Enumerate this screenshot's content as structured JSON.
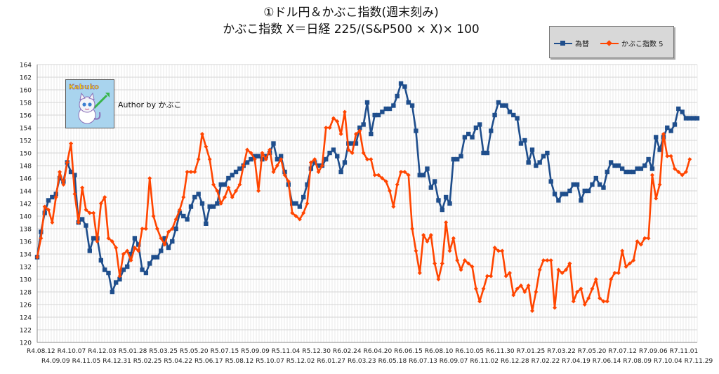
{
  "header": {
    "title_line1": "①ドル円＆かぶこ指数(週末刻み)",
    "title_line2": "かぶこ指数 X＝日経 225/(S&P500 × X)× 100"
  },
  "logo": {
    "text": "Kabuko",
    "author": "Author by かぶこ"
  },
  "colors": {
    "fx": "#1f4e8c",
    "kabuko": "#ff4500",
    "grid": "#c8c8c8",
    "plot_bg": "#ffffff"
  },
  "chart_data": {
    "type": "line",
    "title": "①ドル円＆かぶこ指数(週末刻み)",
    "subtitle": "かぶこ指数 X＝日経 225/(S&P500 × X)× 100",
    "xlabel": "",
    "ylabel": "",
    "ylim": [
      120,
      164
    ],
    "ytick_step": 2,
    "grid": true,
    "legend_position": "top-right",
    "x_tick_labels_row1": [
      "R4.08.12",
      "R4.10.07",
      "R4.12.03",
      "R5.01.28",
      "R5.03.25",
      "R5.05.20",
      "R5.07.15",
      "R5.09.09",
      "R5.11.04",
      "R5.12.30",
      "R6.02.24",
      "R6.04.20",
      "R6.06.15",
      "R6.08.10",
      "R6.10.05",
      "R6.11.30",
      "R7.01.25",
      "R7.03.22",
      "R7.05.20",
      "R7.07.12",
      "R7.09.06",
      "R7.11.01"
    ],
    "x_tick_labels_row2": [
      "R4.09.09",
      "R4.11.05",
      "R4.12.31",
      "R5.02.25",
      "R5.04.22",
      "R5.06.17",
      "R5.08.12",
      "R5.10.07",
      "R5.12.02",
      "R6.01.27",
      "R6.03.23",
      "R6.05.18",
      "R6.07.13",
      "R6.09.07",
      "R6.11.02",
      "R6.12.28",
      "R7.02.22",
      "R7.04.19",
      "R7.06.14",
      "R7.08.09",
      "R7.10.04",
      "R7.11.29"
    ],
    "series": [
      {
        "name": "為替",
        "marker": "square",
        "values": [
          133.5,
          137.5,
          140.5,
          142.5,
          143,
          143.5,
          146,
          145.5,
          148.5,
          147,
          146.5,
          139,
          139.5,
          138.5,
          134.5,
          136.5,
          136.5,
          133,
          131.5,
          131,
          128,
          129.5,
          130,
          131.5,
          132,
          134,
          136.5,
          135.5,
          131.5,
          131,
          132.5,
          133.5,
          133.5,
          134.5,
          136.5,
          135,
          136,
          138,
          140.5,
          140,
          139.5,
          141.5,
          143,
          143.5,
          142,
          138.8,
          141.5,
          141.5,
          142,
          145,
          145,
          146,
          146.5,
          147,
          147.5,
          148,
          148.5,
          149,
          149.5,
          149.5,
          149,
          149.5,
          150,
          151.5,
          149,
          149.5,
          147,
          145,
          142,
          142,
          141.5,
          143,
          145,
          147.5,
          148.5,
          148,
          148,
          149,
          150,
          150.5,
          149.5,
          147,
          148.5,
          151.5,
          151.5,
          151.5,
          154,
          154.5,
          158,
          153,
          156,
          156,
          156.5,
          157,
          157,
          157.5,
          159,
          161,
          160.5,
          158,
          157.5,
          153.5,
          146.5,
          146.5,
          147.5,
          144.5,
          145.5,
          142.5,
          141,
          143,
          142,
          149,
          149,
          149.5,
          152.5,
          153,
          152.5,
          154,
          154.5,
          150,
          150,
          153.5,
          156,
          158,
          157.5,
          157.5,
          156.5,
          156,
          155.5,
          151.5,
          152,
          148.5,
          150.5,
          148,
          148.5,
          149.5,
          150,
          145.5,
          143.5,
          142.5,
          143.5,
          143.5,
          144,
          145,
          145,
          142.5,
          144,
          144,
          145,
          146,
          145,
          144.5,
          147,
          148.5,
          148,
          148,
          147.5,
          147,
          147,
          147,
          147.5,
          147.5,
          148,
          149,
          147.5,
          152.5,
          150.5,
          152.5,
          154,
          153.5,
          154.5,
          157,
          156.5,
          155.5,
          155.5,
          155.5,
          155.5
        ]
      },
      {
        "name": "かぶこ指数 5",
        "marker": "diamond",
        "values": [
          133.5,
          136.5,
          141.5,
          141,
          139,
          143,
          147,
          145,
          148.5,
          151.5,
          143.5,
          139,
          144.5,
          141,
          140.5,
          140.5,
          136,
          142,
          143,
          136.5,
          136,
          135,
          130.5,
          134,
          134.5,
          133,
          135,
          134.5,
          138,
          138,
          146,
          140,
          138,
          136.5,
          135.5,
          137.5,
          138,
          139.5,
          141,
          143,
          147,
          147,
          147,
          149,
          153,
          151,
          149,
          145,
          144,
          142,
          143,
          144.5,
          143,
          144,
          145,
          148,
          150.5,
          150,
          149,
          144,
          150,
          149,
          150.5,
          147,
          148,
          149,
          146.5,
          145.5,
          140.5,
          140,
          139.5,
          140.5,
          142,
          148.5,
          149,
          147,
          148,
          154,
          154,
          155.5,
          155,
          153,
          156.5,
          150.5,
          150,
          153,
          153.5,
          150,
          149,
          149,
          146.5,
          146.5,
          146,
          145.5,
          144,
          141.5,
          145,
          147,
          147,
          146.5,
          138,
          134.5,
          131,
          137,
          136,
          137,
          132.5,
          130,
          132.5,
          139,
          134.5,
          136.5,
          133,
          131.5,
          133,
          132.5,
          132,
          128.5,
          126.5,
          128.5,
          130.5,
          130.5,
          135,
          134.5,
          134.5,
          130.5,
          131,
          127.5,
          128.5,
          129,
          128,
          129,
          125,
          128,
          131.5,
          133,
          133,
          133,
          125.5,
          131.5,
          131,
          131.5,
          132.5,
          126.5,
          128,
          128.5,
          126,
          127,
          128.5,
          130,
          127,
          126.5,
          126.5,
          130,
          131,
          131,
          134.5,
          132,
          132.5,
          133,
          136,
          135.5,
          136.5,
          136.5,
          146.5,
          142.8,
          145,
          153,
          149.5,
          149.5,
          147.5,
          147,
          146.5,
          147,
          149
        ]
      }
    ]
  }
}
